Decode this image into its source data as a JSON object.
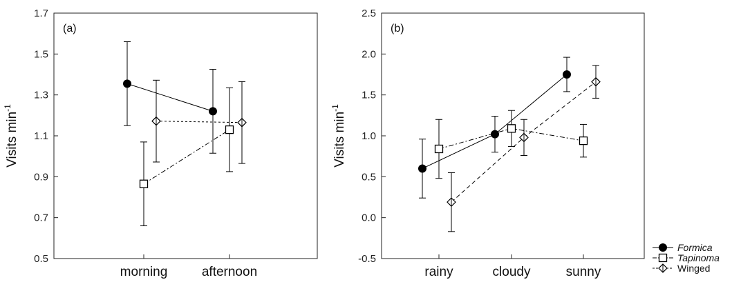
{
  "chart_data": [
    {
      "type": "line",
      "panel_label": "(a)",
      "ylabel": "Visits min",
      "ylabel_sup": "-1",
      "xlabel": "",
      "ylim": [
        0.5,
        1.7
      ],
      "yticks": [
        "0.5",
        "0.7",
        "0.9",
        "1.1",
        "1.3",
        "1.5",
        "1.7"
      ],
      "categories": [
        "morning",
        "afternoon"
      ],
      "series": [
        {
          "name": "Formica",
          "marker": "circle",
          "line": "solid",
          "values": [
            1.355,
            1.22
          ],
          "err": [
            0.205,
            0.205
          ]
        },
        {
          "name": "Tapinoma",
          "marker": "square",
          "line": "dashdot",
          "values": [
            0.865,
            1.13
          ],
          "err": [
            0.205,
            0.205
          ]
        },
        {
          "name": "Winged",
          "marker": "diamond",
          "line": "dotted",
          "values": [
            1.172,
            1.165
          ],
          "err": [
            0.2,
            0.2
          ]
        }
      ]
    },
    {
      "type": "line",
      "panel_label": "(b)",
      "ylabel": "Visits min",
      "ylabel_sup": "-1",
      "xlabel": "",
      "ylim": [
        -0.5,
        2.5
      ],
      "yticks": [
        "-0.5",
        "0.0",
        "0.5",
        "1.0",
        "1.5",
        "2.0",
        "2.5"
      ],
      "categories": [
        "rainy",
        "cloudy",
        "sunny"
      ],
      "series": [
        {
          "name": "Formica",
          "marker": "circle",
          "line": "solid",
          "values": [
            0.6,
            1.02,
            1.75
          ],
          "err": [
            0.36,
            0.22,
            0.21
          ]
        },
        {
          "name": "Tapinoma",
          "marker": "square",
          "line": "dashdot",
          "values": [
            0.84,
            1.09,
            0.94
          ],
          "err": [
            0.36,
            0.22,
            0.2
          ]
        },
        {
          "name": "Winged",
          "marker": "diamond",
          "line": "dashed",
          "values": [
            0.19,
            0.98,
            1.66
          ],
          "err": [
            0.36,
            0.22,
            0.2
          ]
        }
      ]
    }
  ],
  "legend": {
    "placement": "bottom-right",
    "items": [
      {
        "label": "Formica",
        "italic": true,
        "marker": "circle"
      },
      {
        "label": "Tapinoma",
        "italic": true,
        "marker": "square"
      },
      {
        "label": "Winged",
        "italic": false,
        "marker": "diamond"
      }
    ]
  }
}
